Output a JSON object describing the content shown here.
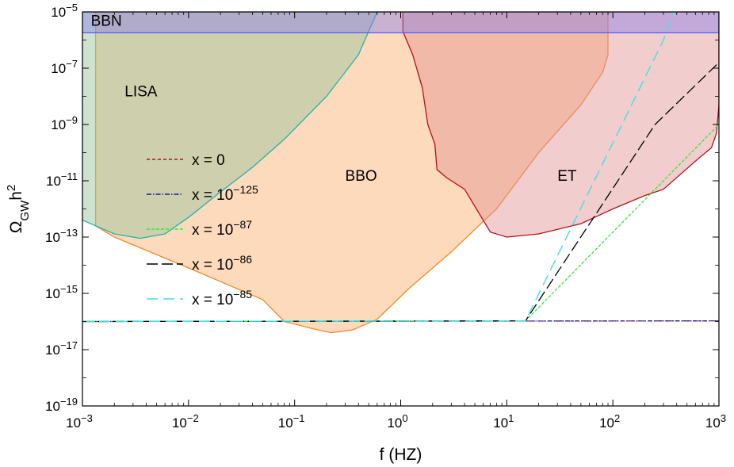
{
  "chart_data": {
    "type": "line",
    "title": "",
    "xlabel": "f (HZ)",
    "ylabel_main": "Ω",
    "ylabel_sub": "GW",
    "ylabel_tail": "h",
    "ylabel_sup": "2",
    "x_scale": "log",
    "y_scale": "log",
    "xlim": [
      0.001,
      1000
    ],
    "ylim": [
      1e-19,
      1e-05
    ],
    "grid": false,
    "legend_position": "center-left",
    "x_ticks": [
      {
        "base": "10",
        "exp": "−3",
        "value": 0.001
      },
      {
        "base": "10",
        "exp": "−2",
        "value": 0.01
      },
      {
        "base": "10",
        "exp": "−1",
        "value": 0.1
      },
      {
        "base": "10",
        "exp": "0",
        "value": 1
      },
      {
        "base": "10",
        "exp": "1",
        "value": 10
      },
      {
        "base": "10",
        "exp": "2",
        "value": 100
      },
      {
        "base": "10",
        "exp": "3",
        "value": 1000
      }
    ],
    "y_ticks": [
      {
        "base": "10",
        "exp": "−19",
        "value": 1e-19
      },
      {
        "base": "10",
        "exp": "−17",
        "value": 1e-17
      },
      {
        "base": "10",
        "exp": "−15",
        "value": 1e-15
      },
      {
        "base": "10",
        "exp": "−13",
        "value": 1e-13
      },
      {
        "base": "10",
        "exp": "−11",
        "value": 1e-11
      },
      {
        "base": "10",
        "exp": "−9",
        "value": 1e-09
      },
      {
        "base": "10",
        "exp": "−7",
        "value": 1e-07
      },
      {
        "base": "10",
        "exp": "−5",
        "value": 1e-05
      }
    ],
    "regions": [
      {
        "name": "BBO",
        "label": "BBO",
        "label_at": [
          0.3,
          1e-11
        ],
        "fill": "#fdd4b0",
        "stroke": "#f08a2a",
        "opacity": 0.85,
        "points": [
          [
            0.00133,
            1e-05
          ],
          [
            0.00133,
            2.5e-13
          ],
          [
            0.002,
            1e-13
          ],
          [
            0.01,
            8e-15
          ],
          [
            0.05,
            6e-16
          ],
          [
            0.08,
            1e-16
          ],
          [
            0.15,
            5.5e-17
          ],
          [
            0.22,
            4e-17
          ],
          [
            0.35,
            5e-17
          ],
          [
            0.6,
            1.2e-16
          ],
          [
            1.2,
            1.5e-15
          ],
          [
            3,
            3e-14
          ],
          [
            8,
            1e-12
          ],
          [
            20,
            1e-10
          ],
          [
            50,
            5e-09
          ],
          [
            80,
            7e-08
          ],
          [
            90,
            3e-07
          ],
          [
            90,
            1e-05
          ]
        ]
      },
      {
        "name": "LISA",
        "label": "LISA",
        "label_at": [
          0.0025,
          1e-08
        ],
        "fill": "#9fc59e",
        "stroke": "#20b2aa",
        "opacity": 0.5,
        "points": [
          [
            0.001,
            1e-05
          ],
          [
            0.001,
            4e-13
          ],
          [
            0.002,
            1.3e-13
          ],
          [
            0.0035,
            9e-14
          ],
          [
            0.006,
            1.3e-13
          ],
          [
            0.01,
            5e-13
          ],
          [
            0.02,
            4e-12
          ],
          [
            0.04,
            3e-11
          ],
          [
            0.08,
            3e-10
          ],
          [
            0.2,
            1e-08
          ],
          [
            0.4,
            3e-07
          ],
          [
            0.6,
            1e-05
          ]
        ]
      },
      {
        "name": "ET",
        "label": "ET",
        "label_at": [
          30,
          1e-11
        ],
        "fill": "#e39190",
        "stroke": "#b3121e",
        "opacity": 0.45,
        "points": [
          [
            1.05,
            1e-05
          ],
          [
            1.05,
            2e-06
          ],
          [
            1.3,
            3e-07
          ],
          [
            1.6,
            2e-08
          ],
          [
            1.8,
            1e-09
          ],
          [
            2.1,
            2e-10
          ],
          [
            2.2,
            2.5e-11
          ],
          [
            2.7,
            1.3e-11
          ],
          [
            4,
            5e-12
          ],
          [
            7,
            1.5e-13
          ],
          [
            10,
            1e-13
          ],
          [
            20,
            1.3e-13
          ],
          [
            50,
            3e-13
          ],
          [
            100,
            1e-12
          ],
          [
            200,
            3e-12
          ],
          [
            300,
            5e-12
          ],
          [
            600,
            5e-11
          ],
          [
            850,
            1.5e-10
          ],
          [
            950,
            5e-10
          ],
          [
            1000,
            5e-09
          ],
          [
            1000,
            1e-05
          ]
        ]
      },
      {
        "name": "BBN",
        "label": "BBN",
        "label_at": [
          0.0012,
          3.2e-06
        ],
        "fill": "#8a7ee8",
        "stroke": "#4e5ef4",
        "opacity": 0.45,
        "points": [
          [
            0.001,
            1e-05
          ],
          [
            0.001,
            1.8e-06
          ],
          [
            1000,
            1.8e-06
          ],
          [
            1000,
            1e-05
          ]
        ]
      }
    ],
    "series": [
      {
        "name": "x = 0",
        "label_base": "x = 0",
        "label_sup": "",
        "color": "#9b1c1c",
        "dash": "4,3",
        "width": 1.2,
        "x": [
          0.001,
          1000
        ],
        "y": [
          1e-16,
          1.05e-16
        ]
      },
      {
        "name": "x = 10−125",
        "label_base": "x = 10",
        "label_sup": "−125",
        "color": "#1a1aa0",
        "dash": "6,2,1.5,2",
        "width": 1.2,
        "x": [
          0.001,
          1000
        ],
        "y": [
          1e-16,
          1.05e-16
        ]
      },
      {
        "name": "x = 10−87",
        "label_base": "x = 10",
        "label_sup": "−87",
        "color": "#39e639",
        "dash": "4,2",
        "width": 1.3,
        "x": [
          0.001,
          15,
          1000
        ],
        "y": [
          1e-16,
          1.05e-16,
          1e-09
        ]
      },
      {
        "name": "x = 10−86",
        "label_base": "x = 10",
        "label_sup": "−86",
        "color": "#000000",
        "dash": "14,5",
        "width": 1.3,
        "x": [
          0.001,
          15,
          250,
          1000
        ],
        "y": [
          1e-16,
          1.05e-16,
          1e-09,
          1.6e-07
        ]
      },
      {
        "name": "x = 10−85",
        "label_base": "x = 10",
        "label_sup": "−85",
        "color": "#40e0e8",
        "dash": "14,7",
        "width": 1.4,
        "x": [
          0.001,
          15,
          300,
          370
        ],
        "y": [
          1e-16,
          1.05e-16,
          1e-06,
          1e-05
        ]
      }
    ]
  }
}
